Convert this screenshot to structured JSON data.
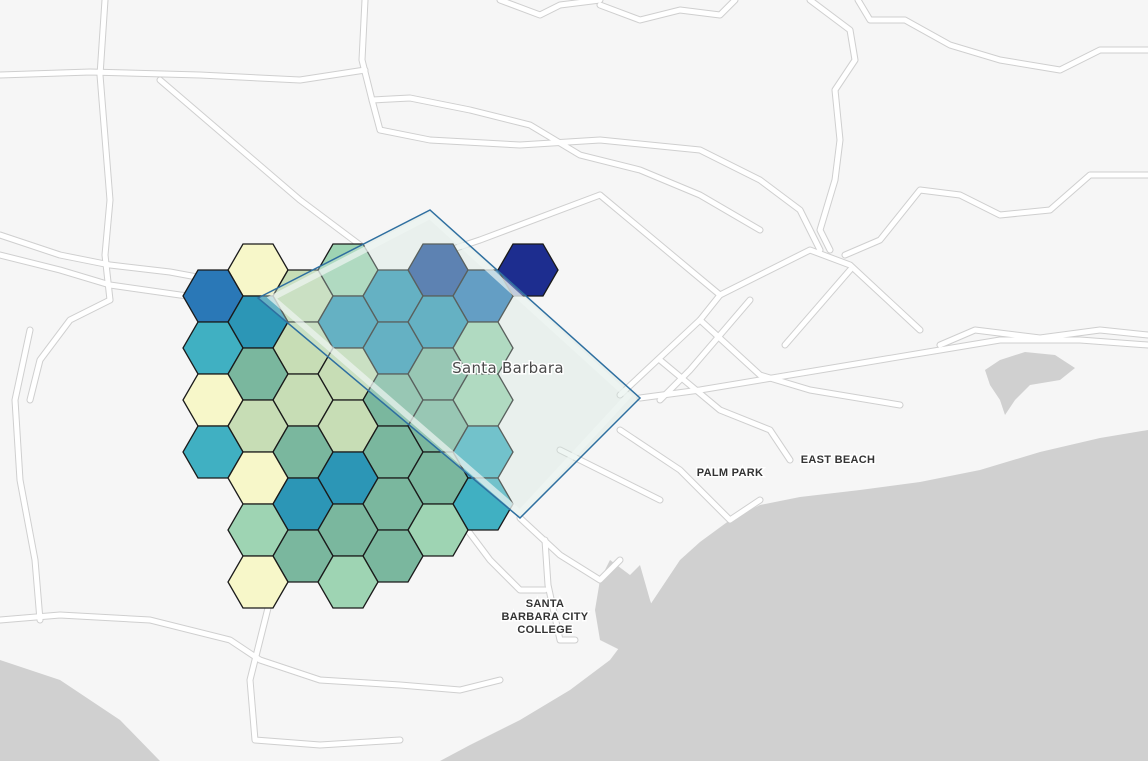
{
  "map": {
    "place_label": "Santa Barbara",
    "poi_labels": [
      {
        "id": "palm-park",
        "lines": [
          "PALM PARK"
        ]
      },
      {
        "id": "east-beach",
        "lines": [
          "EAST BEACH"
        ]
      },
      {
        "id": "sbcc",
        "lines": [
          "SANTA",
          "BARBARA CITY",
          "COLLEGE"
        ]
      }
    ],
    "colors": {
      "land": "#f6f6f6",
      "water": "#d0d0d0",
      "road": "#ffffff",
      "road_casing": "#cfcfcf",
      "aoi_outline": "#2e6fa0"
    },
    "hex_palette": [
      "#f7f7c9",
      "#c7ddb5",
      "#9ed4b3",
      "#7ab79e",
      "#40b0c2",
      "#2c96b6",
      "#2a78b7",
      "#1f4e9c",
      "#1d2d8f"
    ],
    "hex_classes": [
      [
        null,
        null,
        null,
        8,
        null,
        null,
        null,
        null,
        null
      ],
      [
        null,
        null,
        7,
        6,
        null,
        null,
        null,
        null,
        null
      ],
      [
        null,
        2,
        5,
        5,
        2,
        null,
        null,
        null,
        null
      ],
      [
        0,
        1,
        5,
        5,
        3,
        2,
        null,
        null,
        null
      ],
      [
        6,
        5,
        1,
        1,
        3,
        3,
        4,
        null,
        null
      ],
      [
        null,
        4,
        3,
        1,
        1,
        3,
        3,
        4,
        null
      ],
      [
        null,
        null,
        0,
        1,
        3,
        5,
        3,
        2,
        null
      ],
      [
        null,
        null,
        null,
        4,
        0,
        5,
        3,
        3,
        null
      ],
      [
        null,
        null,
        null,
        null,
        null,
        2,
        3,
        2,
        null
      ],
      [
        null,
        null,
        null,
        null,
        null,
        null,
        0,
        null,
        null
      ]
    ]
  }
}
